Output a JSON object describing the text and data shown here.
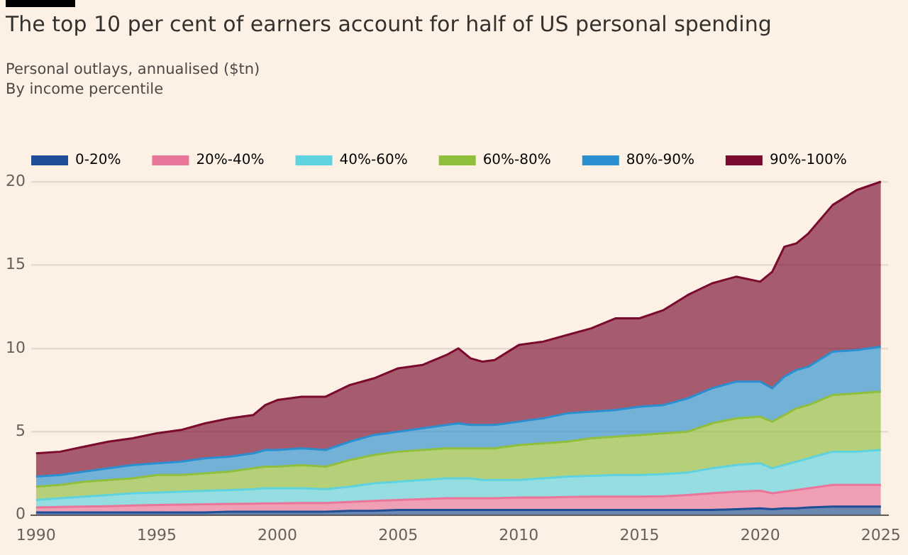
{
  "chart_data": {
    "type": "area",
    "title": "The top 10 per cent of earners account for half of US personal spending",
    "subtitle": "Personal outlays, annualised ($tn)\nBy income percentile",
    "stacked": true,
    "grid": "y",
    "legend": "top left",
    "marker": "none",
    "x": [
      1990,
      1991,
      1992,
      1993,
      1994,
      1995,
      1996,
      1997,
      1998,
      1999,
      1999.5,
      2000,
      2001,
      2002,
      2003,
      2004,
      2005,
      2006,
      2007,
      2007.5,
      2008,
      2008.5,
      2009,
      2010,
      2011,
      2012,
      2013,
      2014,
      2015,
      2016,
      2017,
      2018,
      2019,
      2020,
      2020.5,
      2021,
      2021.5,
      2022,
      2023,
      2024,
      2025
    ],
    "xlim": [
      1989.8,
      2025.3
    ],
    "xticks": [
      1990,
      1995,
      2000,
      2005,
      2010,
      2015,
      2020,
      2025
    ],
    "ylim": [
      0,
      20
    ],
    "yticks": [
      0,
      5,
      10,
      15,
      20
    ],
    "series": [
      {
        "name": "0-20%",
        "color": "#1f4e96",
        "values": [
          0.15,
          0.15,
          0.15,
          0.15,
          0.15,
          0.15,
          0.15,
          0.15,
          0.2,
          0.2,
          0.2,
          0.2,
          0.2,
          0.2,
          0.25,
          0.25,
          0.3,
          0.3,
          0.3,
          0.3,
          0.3,
          0.3,
          0.3,
          0.3,
          0.3,
          0.3,
          0.3,
          0.3,
          0.3,
          0.3,
          0.3,
          0.3,
          0.35,
          0.4,
          0.35,
          0.4,
          0.4,
          0.45,
          0.5,
          0.5,
          0.5
        ]
      },
      {
        "name": "20%-40%",
        "color": "#e9759a",
        "values": [
          0.3,
          0.33,
          0.35,
          0.38,
          0.42,
          0.45,
          0.47,
          0.49,
          0.46,
          0.48,
          0.5,
          0.5,
          0.52,
          0.52,
          0.53,
          0.6,
          0.6,
          0.65,
          0.7,
          0.7,
          0.7,
          0.7,
          0.7,
          0.75,
          0.75,
          0.78,
          0.8,
          0.8,
          0.8,
          0.82,
          0.9,
          1.0,
          1.05,
          1.05,
          0.95,
          1.0,
          1.1,
          1.15,
          1.3,
          1.3,
          1.3
        ]
      },
      {
        "name": "40%-60%",
        "color": "#5ed3df",
        "values": [
          0.45,
          0.52,
          0.6,
          0.67,
          0.73,
          0.75,
          0.78,
          0.81,
          0.84,
          0.87,
          0.9,
          0.9,
          0.88,
          0.83,
          0.92,
          1.05,
          1.1,
          1.15,
          1.2,
          1.2,
          1.2,
          1.1,
          1.1,
          1.05,
          1.15,
          1.22,
          1.25,
          1.3,
          1.3,
          1.33,
          1.35,
          1.5,
          1.6,
          1.65,
          1.5,
          1.6,
          1.7,
          1.8,
          2.0,
          2.0,
          2.1
        ]
      },
      {
        "name": "60%-80%",
        "color": "#8fbf3d",
        "values": [
          0.8,
          0.8,
          0.9,
          0.9,
          0.9,
          1.05,
          1.0,
          1.05,
          1.1,
          1.25,
          1.3,
          1.3,
          1.4,
          1.35,
          1.6,
          1.7,
          1.8,
          1.8,
          1.8,
          1.8,
          1.8,
          1.9,
          1.9,
          2.1,
          2.1,
          2.1,
          2.25,
          2.3,
          2.4,
          2.45,
          2.45,
          2.7,
          2.8,
          2.8,
          2.8,
          3.0,
          3.2,
          3.2,
          3.4,
          3.5,
          3.5
        ]
      },
      {
        "name": "80%-90%",
        "color": "#2a8fd0",
        "values": [
          0.6,
          0.6,
          0.6,
          0.7,
          0.8,
          0.7,
          0.8,
          0.9,
          0.9,
          0.9,
          1.0,
          1.0,
          1.0,
          1.0,
          1.1,
          1.2,
          1.2,
          1.3,
          1.4,
          1.5,
          1.4,
          1.4,
          1.4,
          1.4,
          1.5,
          1.7,
          1.6,
          1.6,
          1.7,
          1.7,
          2.0,
          2.1,
          2.2,
          2.1,
          2.0,
          2.3,
          2.3,
          2.3,
          2.6,
          2.6,
          2.7
        ]
      },
      {
        "name": "90%-100%",
        "color": "#7a0a2e",
        "values": [
          1.4,
          1.4,
          1.5,
          1.6,
          1.6,
          1.8,
          1.9,
          2.1,
          2.3,
          2.3,
          2.7,
          3.0,
          3.1,
          3.2,
          3.4,
          3.4,
          3.8,
          3.8,
          4.2,
          4.5,
          4.0,
          3.8,
          3.9,
          4.6,
          4.6,
          4.7,
          5.0,
          5.5,
          5.3,
          5.7,
          6.2,
          6.3,
          6.3,
          6.0,
          7.0,
          7.8,
          7.6,
          8.0,
          8.8,
          9.6,
          9.9
        ]
      }
    ]
  }
}
